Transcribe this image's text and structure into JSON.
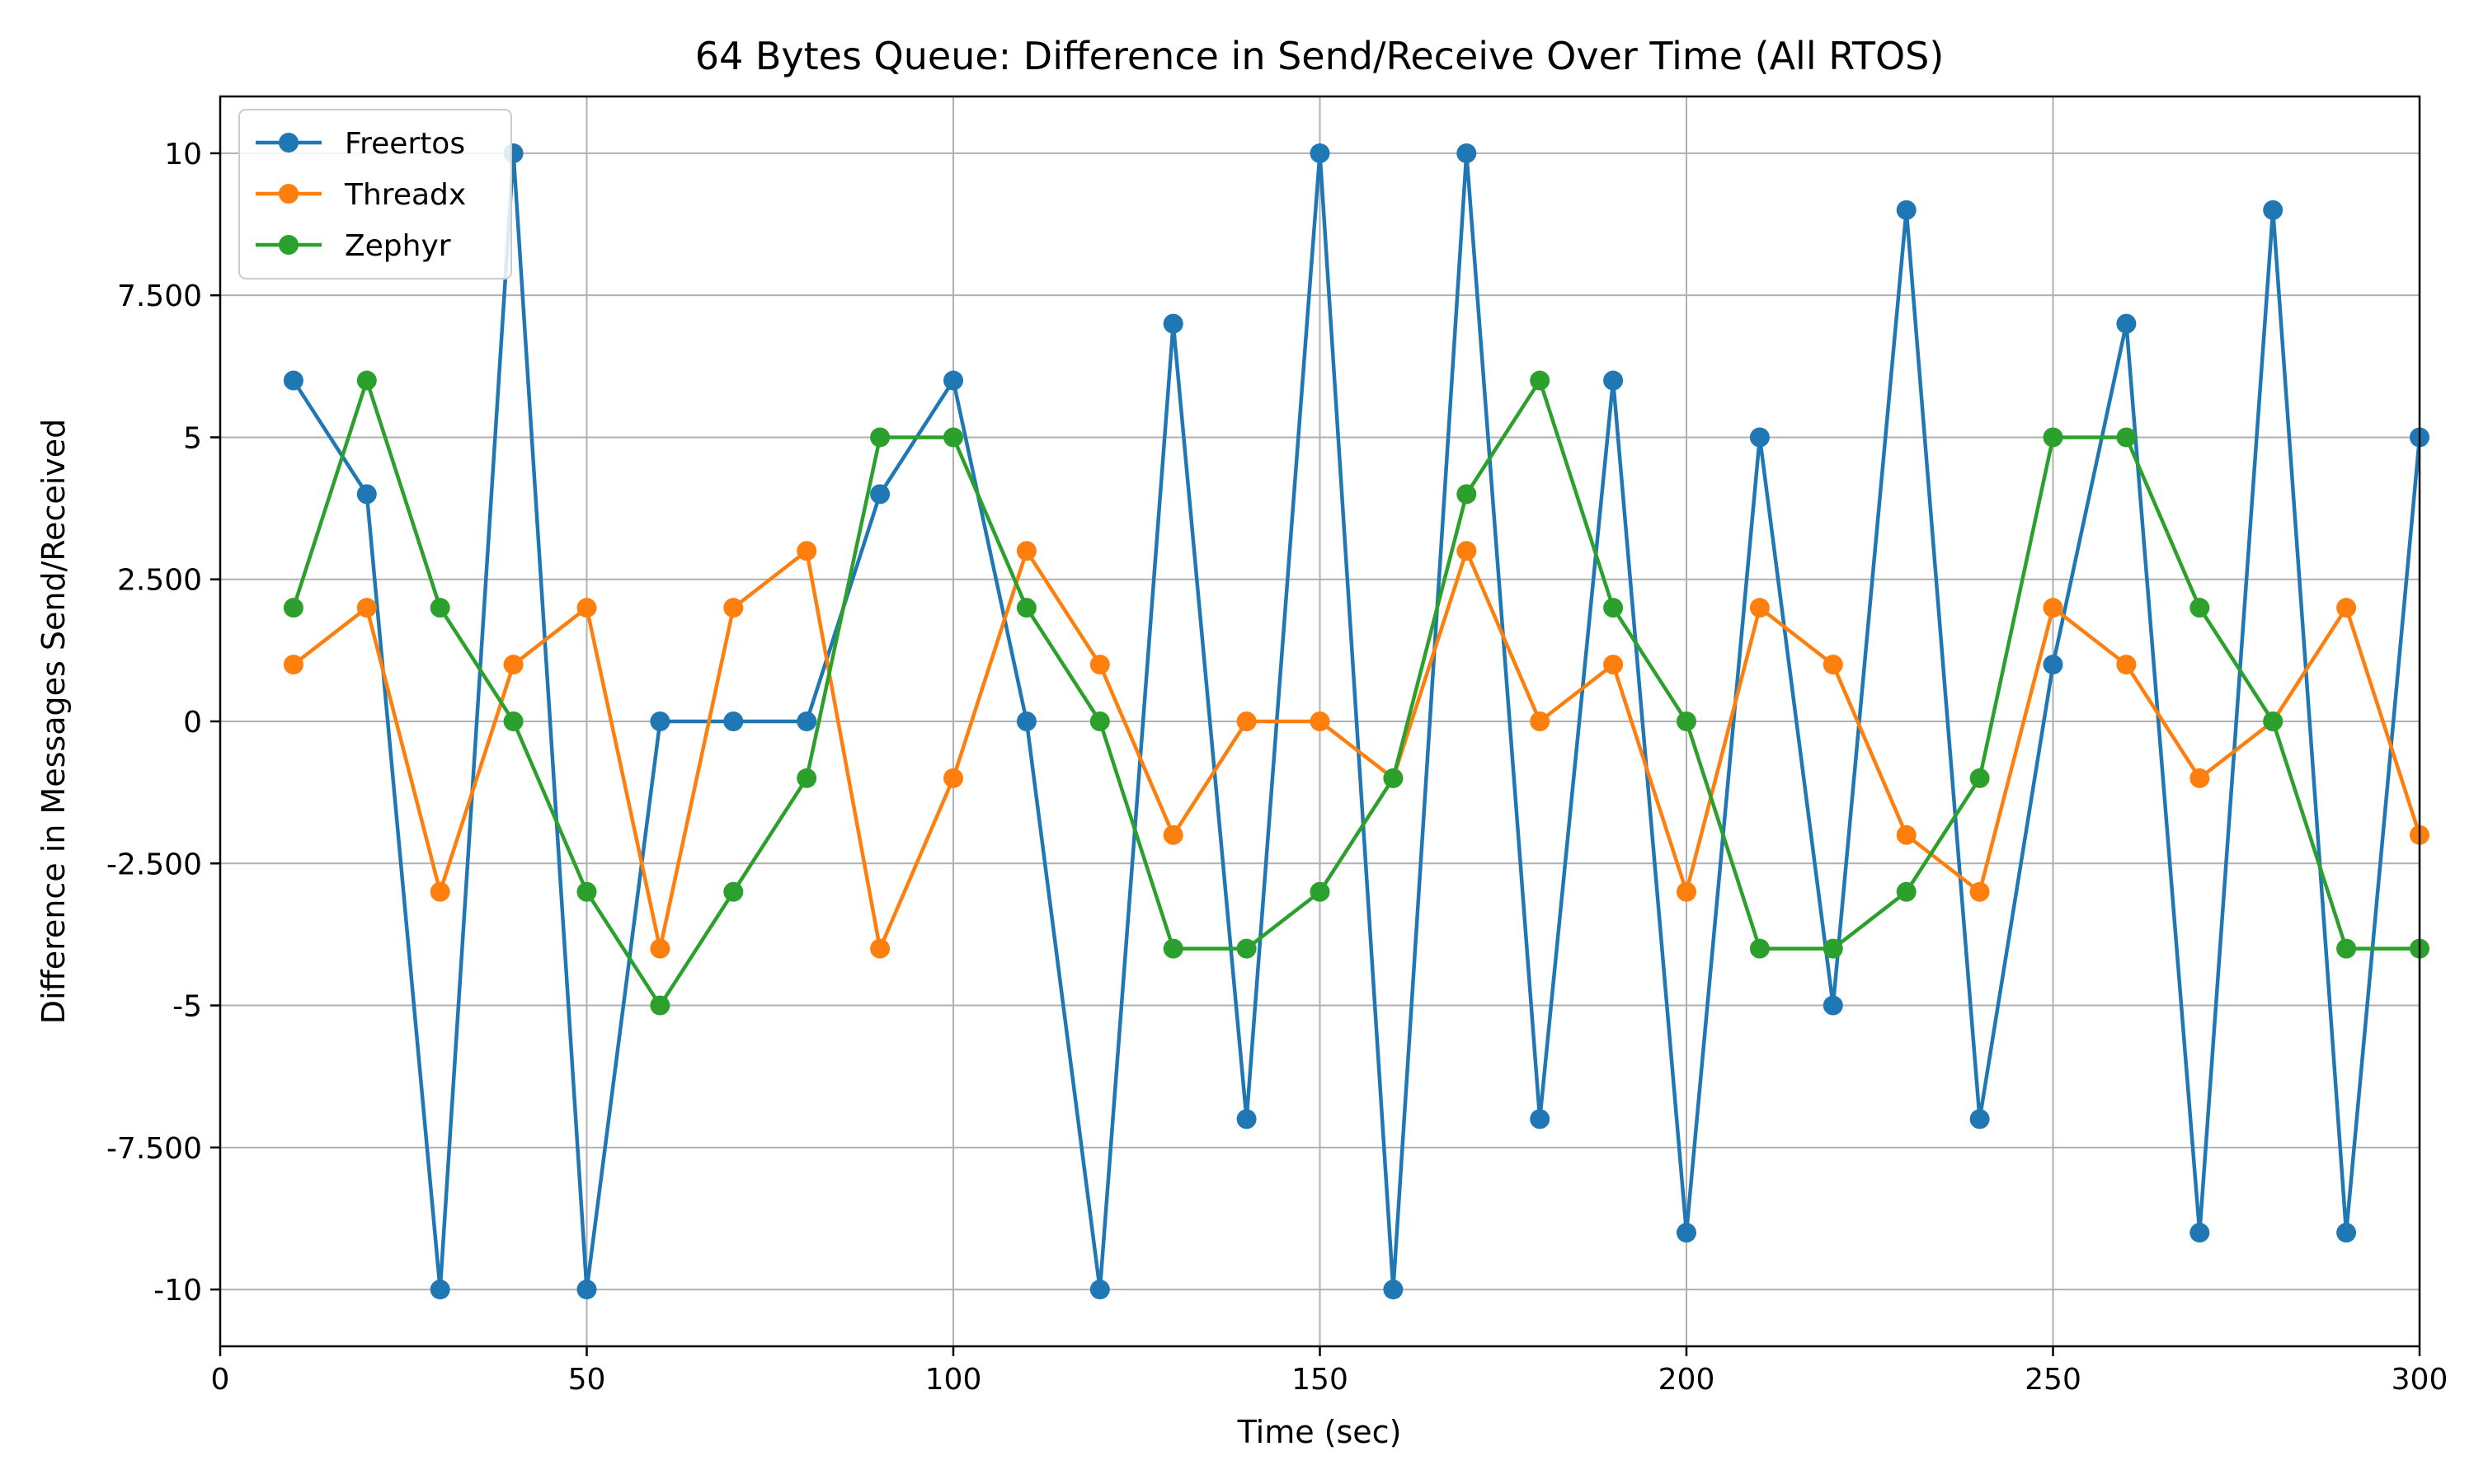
{
  "chart_data": {
    "type": "line",
    "title": "64 Bytes Queue: Difference in Send/Receive Over Time (All RTOS)",
    "xlabel": "Time (sec)",
    "ylabel": "Difference in Messages Send/Received",
    "xlim": [
      0,
      300
    ],
    "ylim": [
      -11,
      11
    ],
    "xticks": [
      0,
      50,
      100,
      150,
      200,
      250,
      300
    ],
    "xtick_labels": [
      "0",
      "50",
      "100",
      "150",
      "200",
      "250",
      "300"
    ],
    "yticks": [
      -10,
      -7.5,
      -5,
      -2.5,
      0,
      2.5,
      5,
      7.5,
      10
    ],
    "ytick_labels": [
      "-10",
      "-7.500",
      "-5",
      "-2.500",
      "0",
      "2.500",
      "5",
      "7.500",
      "10"
    ],
    "grid": true,
    "legend_position": "top-left",
    "x": [
      10,
      20,
      30,
      40,
      50,
      60,
      70,
      80,
      90,
      100,
      110,
      120,
      130,
      140,
      150,
      160,
      170,
      180,
      190,
      200,
      210,
      220,
      230,
      240,
      250,
      260,
      270,
      280,
      290,
      300
    ],
    "series": [
      {
        "name": "Freertos",
        "color": "#1f77b4",
        "values": [
          6,
          4,
          -10,
          10,
          -10,
          0,
          0,
          0,
          4,
          6,
          0,
          -10,
          7,
          -7,
          10,
          -10,
          10,
          -7,
          6,
          -9,
          5,
          -5,
          9,
          -7,
          1,
          7,
          -9,
          9,
          -9,
          5
        ]
      },
      {
        "name": "Threadx",
        "color": "#ff7f0e",
        "values": [
          1,
          2,
          -3,
          1,
          2,
          -4,
          2,
          3,
          -4,
          -1,
          3,
          1,
          -2,
          0,
          0,
          -1,
          3,
          0,
          1,
          -3,
          2,
          1,
          -2,
          -3,
          2,
          1,
          -1,
          0,
          2,
          -2
        ]
      },
      {
        "name": "Zephyr",
        "color": "#2ca02c",
        "values": [
          2,
          6,
          2,
          0,
          -3,
          -5,
          -3,
          -1,
          5,
          5,
          2,
          0,
          -4,
          -4,
          -3,
          -1,
          4,
          6,
          2,
          0,
          -4,
          -4,
          -3,
          -1,
          5,
          5,
          2,
          0,
          -4,
          -4
        ]
      }
    ]
  }
}
